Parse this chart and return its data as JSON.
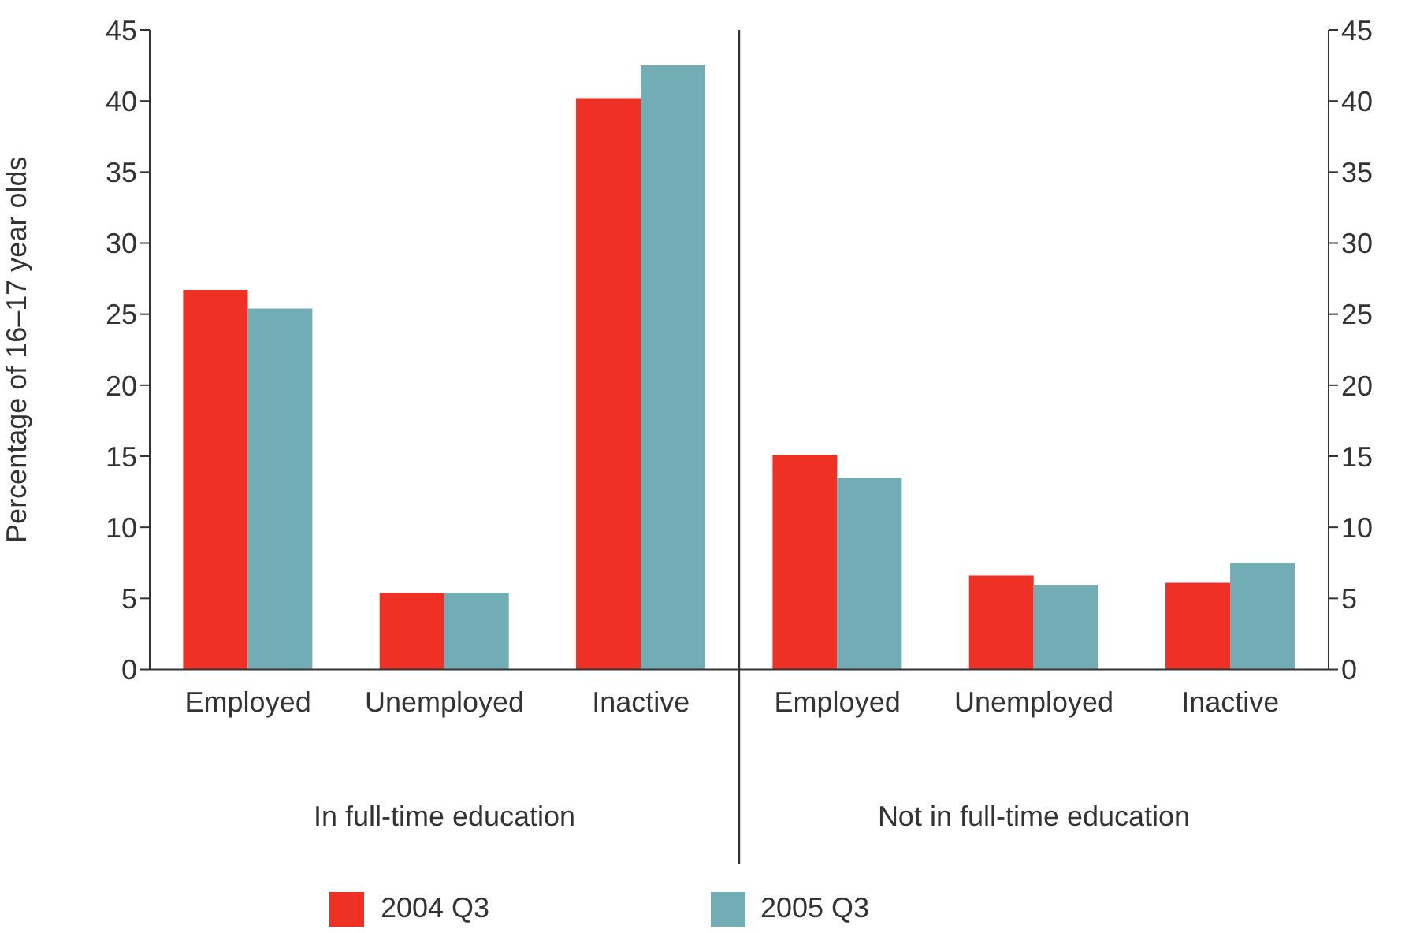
{
  "chart_data": {
    "type": "bar",
    "ylabel": "Percentage of 16–17 year olds",
    "categories": [
      "Employed",
      "Unemployed",
      "Inactive",
      "Employed",
      "Unemployed",
      "Inactive"
    ],
    "series": [
      {
        "name": "2004 Q3",
        "color": "#ee3124",
        "values": [
          26.7,
          5.4,
          40.2,
          15.1,
          6.6,
          6.1
        ]
      },
      {
        "name": "2005 Q3",
        "color": "#72adb5",
        "values": [
          25.4,
          5.4,
          42.5,
          13.5,
          5.9,
          7.5
        ]
      }
    ],
    "annotations": [
      "In full-time education",
      "Not in full-time education"
    ],
    "ylim": [
      0,
      45
    ],
    "yticks": [
      0,
      5,
      10,
      15,
      20,
      25,
      30,
      35,
      40,
      45
    ],
    "y2lim": [
      0,
      45
    ],
    "y2ticks": [
      0,
      5,
      10,
      15,
      20,
      25,
      30,
      35,
      40,
      45
    ],
    "grid": false,
    "legend": "bottom"
  }
}
